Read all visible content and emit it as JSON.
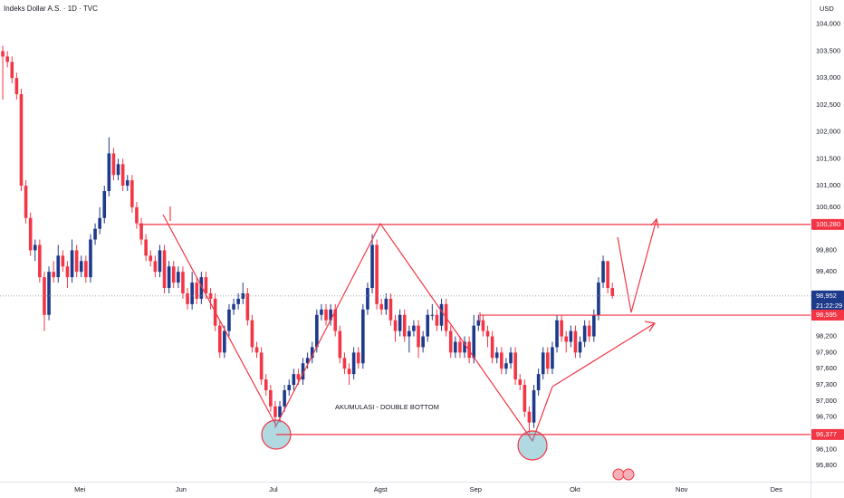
{
  "chart_data": {
    "type": "candlestick",
    "title": "Indeks Dollar A.S. · 1D · TVC",
    "currency": "USD",
    "annotation": "AKUMULASI - DOUBLE BOTTOM",
    "up_color": "#1e3a8a",
    "down_color": "#f23645",
    "grid": false,
    "open": [
      103.5,
      103.4,
      103.3,
      103.0,
      102.7,
      101.0,
      100.4,
      99.8,
      99.9,
      99.3,
      98.6,
      99.4,
      99.3,
      99.7,
      99.5,
      99.3,
      99.8,
      99.4,
      99.6,
      99.3,
      100.0,
      100.2,
      100.4,
      100.9,
      101.6,
      101.2,
      101.4,
      101.0,
      101.1,
      100.6,
      100.3,
      100.0,
      99.7,
      99.6,
      99.4,
      99.8,
      99.1,
      99.5,
      99.2,
      99.4,
      99.0,
      98.8,
      99.2,
      98.9,
      99.3,
      99.0,
      98.9,
      98.4,
      97.9,
      98.3,
      98.7,
      98.8,
      98.9,
      99.0,
      98.5,
      98.0,
      97.9,
      97.4,
      97.2,
      96.9,
      96.7,
      96.9,
      97.2,
      97.3,
      97.5,
      97.4,
      97.7,
      97.8,
      98.0,
      98.6,
      98.7,
      98.5,
      98.7,
      98.3,
      97.8,
      97.6,
      97.5,
      97.9,
      97.7,
      98.7,
      99.1,
      99.9,
      98.8,
      98.7,
      98.9,
      98.5,
      98.3,
      98.6,
      98.2,
      98.3,
      98.4,
      98.0,
      98.2,
      98.6,
      98.6,
      98.4,
      98.8,
      98.3,
      97.9,
      98.1,
      97.9,
      98.1,
      97.8,
      98.4,
      98.5,
      98.3,
      98.2,
      97.8,
      97.9,
      97.6,
      97.7,
      97.9,
      97.4,
      97.3,
      96.8,
      96.6,
      97.2,
      97.5,
      97.9,
      97.6,
      98.0,
      98.5,
      98.2,
      98.1,
      98.3,
      97.9,
      98.1,
      98.4,
      98.2,
      98.6,
      99.2,
      99.6,
      99.1
    ],
    "high": [
      103.6,
      103.5,
      103.4,
      103.1,
      102.8,
      101.1,
      100.5,
      100.0,
      100.0,
      99.4,
      99.5,
      99.6,
      99.9,
      99.8,
      99.6,
      100.0,
      99.9,
      99.7,
      99.7,
      100.1,
      100.3,
      100.6,
      101.0,
      101.9,
      101.7,
      101.5,
      101.5,
      101.2,
      101.2,
      100.7,
      100.4,
      100.1,
      99.8,
      99.7,
      99.9,
      99.9,
      99.6,
      99.6,
      99.5,
      99.5,
      99.1,
      99.4,
      99.3,
      99.4,
      99.4,
      99.1,
      99.0,
      98.5,
      98.4,
      98.8,
      98.9,
      99.0,
      99.2,
      99.1,
      98.6,
      98.1,
      98.0,
      97.5,
      97.3,
      97.0,
      97.0,
      97.3,
      97.4,
      97.6,
      97.6,
      97.8,
      97.9,
      98.1,
      98.7,
      98.8,
      98.8,
      98.8,
      98.8,
      98.4,
      97.9,
      97.7,
      98.0,
      98.0,
      98.8,
      99.2,
      100.1,
      100.0,
      98.9,
      99.0,
      99.0,
      98.6,
      98.7,
      98.7,
      98.4,
      98.5,
      98.5,
      98.3,
      98.7,
      98.8,
      98.7,
      98.9,
      98.9,
      98.4,
      98.2,
      98.2,
      98.2,
      98.2,
      98.6,
      98.6,
      98.6,
      98.4,
      98.3,
      98.0,
      98.0,
      97.8,
      98.0,
      98.0,
      97.5,
      97.4,
      96.9,
      97.3,
      97.6,
      98.0,
      98.0,
      98.1,
      98.6,
      98.6,
      98.3,
      98.4,
      98.4,
      98.2,
      98.5,
      98.5,
      98.7,
      99.3,
      99.7,
      99.6,
      99.2
    ],
    "low": [
      102.6,
      103.2,
      102.9,
      102.6,
      100.9,
      100.3,
      99.7,
      99.6,
      99.2,
      98.3,
      98.5,
      99.2,
      99.2,
      99.4,
      99.1,
      99.2,
      99.3,
      99.3,
      99.2,
      99.2,
      99.9,
      100.1,
      100.3,
      100.8,
      101.1,
      101.1,
      100.9,
      100.9,
      100.5,
      100.2,
      99.9,
      99.6,
      99.5,
      99.3,
      99.3,
      99.0,
      99.0,
      99.1,
      99.1,
      98.9,
      98.7,
      98.7,
      98.8,
      98.8,
      98.9,
      98.7,
      98.3,
      97.8,
      97.8,
      98.2,
      98.6,
      98.7,
      98.8,
      98.4,
      97.9,
      97.8,
      97.3,
      97.1,
      96.8,
      96.5,
      96.6,
      96.8,
      97.1,
      97.2,
      97.3,
      97.3,
      97.6,
      97.7,
      97.9,
      98.5,
      98.4,
      98.4,
      98.2,
      97.7,
      97.5,
      97.3,
      97.4,
      97.6,
      97.6,
      98.6,
      99.0,
      98.7,
      98.6,
      98.6,
      98.4,
      98.1,
      98.2,
      98.1,
      97.9,
      98.2,
      97.8,
      97.9,
      98.1,
      98.5,
      98.3,
      98.3,
      98.2,
      97.8,
      97.8,
      97.8,
      97.8,
      97.7,
      97.7,
      98.3,
      98.2,
      98.0,
      97.7,
      97.7,
      97.5,
      97.5,
      97.6,
      97.3,
      97.2,
      96.7,
      96.4,
      96.5,
      97.1,
      97.4,
      97.5,
      97.5,
      97.9,
      98.1,
      97.9,
      98.0,
      97.8,
      97.8,
      98.0,
      98.1,
      98.1,
      98.5,
      99.1,
      99.0,
      98.9
    ],
    "close": [
      103.4,
      103.3,
      103.0,
      102.7,
      101.0,
      100.4,
      99.8,
      99.9,
      99.3,
      98.6,
      99.4,
      99.3,
      99.7,
      99.5,
      99.3,
      99.8,
      99.4,
      99.6,
      99.3,
      100.0,
      100.2,
      100.4,
      100.9,
      101.6,
      101.2,
      101.4,
      101.0,
      101.1,
      100.6,
      100.3,
      100.0,
      99.7,
      99.6,
      99.4,
      99.8,
      99.1,
      99.5,
      99.2,
      99.4,
      99.0,
      98.8,
      99.2,
      98.9,
      99.3,
      99.0,
      98.9,
      98.4,
      97.9,
      98.3,
      98.7,
      98.8,
      98.9,
      99.0,
      98.5,
      98.0,
      97.9,
      97.4,
      97.2,
      96.9,
      96.7,
      96.9,
      97.2,
      97.3,
      97.5,
      97.4,
      97.7,
      97.8,
      98.0,
      98.6,
      98.7,
      98.5,
      98.7,
      98.3,
      97.8,
      97.6,
      97.5,
      97.9,
      97.7,
      98.7,
      99.1,
      99.9,
      98.8,
      98.7,
      98.9,
      98.5,
      98.3,
      98.6,
      98.2,
      98.3,
      98.4,
      98.0,
      98.2,
      98.6,
      98.6,
      98.4,
      98.8,
      98.3,
      97.9,
      98.1,
      97.9,
      98.1,
      97.8,
      98.4,
      98.5,
      98.3,
      98.2,
      97.8,
      97.9,
      97.6,
      97.7,
      97.9,
      97.4,
      97.3,
      96.8,
      96.6,
      97.2,
      97.5,
      97.9,
      97.6,
      98.0,
      98.5,
      98.2,
      98.1,
      98.3,
      97.9,
      98.1,
      98.4,
      98.2,
      98.6,
      99.2,
      99.6,
      99.1,
      98.95
    ],
    "xlim": [
      -0.6,
      174.9
    ],
    "xticks": [
      {
        "value": 16.7,
        "label": "Mei"
      },
      {
        "value": 38.6,
        "label": "Jun"
      },
      {
        "value": 58.6,
        "label": "Jul"
      },
      {
        "value": 81.8,
        "label": "Agst"
      },
      {
        "value": 102.4,
        "label": "Sep"
      },
      {
        "value": 123.9,
        "label": "Okt"
      },
      {
        "value": 147,
        "label": "Nov"
      },
      {
        "value": 167.5,
        "label": "Des"
      }
    ],
    "ylim": [
      95.45,
      104.45
    ],
    "yticks": [
      {
        "value": 104,
        "label": "104,000"
      },
      {
        "value": 103.5,
        "label": "103,500"
      },
      {
        "value": 103,
        "label": "103,000"
      },
      {
        "value": 102.5,
        "label": "102,500"
      },
      {
        "value": 102,
        "label": "102,000"
      },
      {
        "value": 101.5,
        "label": "101,500"
      },
      {
        "value": 101,
        "label": "101,000"
      },
      {
        "value": 100.6,
        "label": "100,600"
      },
      {
        "value": 99.8,
        "label": "99,800"
      },
      {
        "value": 99.4,
        "label": "99,400"
      },
      {
        "value": 98.2,
        "label": "98,200"
      },
      {
        "value": 97.9,
        "label": "97,900"
      },
      {
        "value": 97.6,
        "label": "97,600"
      },
      {
        "value": 97.3,
        "label": "97,300"
      },
      {
        "value": 97,
        "label": "97,000"
      },
      {
        "value": 96.7,
        "label": "96,700"
      },
      {
        "value": 96.1,
        "label": "96,100"
      },
      {
        "value": 95.8,
        "label": "95,800"
      }
    ],
    "price_tags": [
      {
        "value": 100.28,
        "label": "100,280",
        "color": "#f23645"
      },
      {
        "value": 98.952,
        "label": "98,952",
        "color": "#1e3a8a",
        "timer": "21:22:29"
      },
      {
        "value": 98.595,
        "label": "98,595",
        "color": "#f23645"
      },
      {
        "value": 96.377,
        "label": "96,377",
        "color": "#f23645"
      }
    ]
  }
}
